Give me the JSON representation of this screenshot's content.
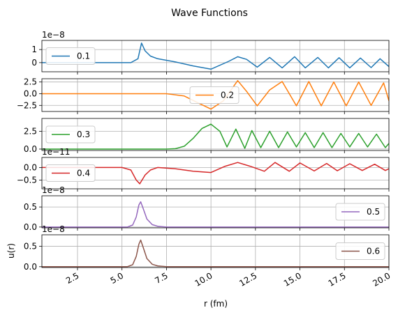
{
  "chart_data": {
    "type": "line",
    "title": "Wave Functions",
    "xlabel": "r (fm)",
    "ylabel": "u(r)",
    "xlim": [
      0.5,
      20
    ],
    "x_ticks": [
      "2.5",
      "5.0",
      "7.5",
      "10.0",
      "12.5",
      "15.0",
      "17.5",
      "20.0"
    ],
    "x_tick_values": [
      2.5,
      5,
      7.5,
      10,
      12.5,
      15,
      17.5,
      20
    ],
    "grid": true,
    "subplots": [
      {
        "name": "0.1",
        "color": "#1f77b4",
        "exponent": "1e−8",
        "legend": "left",
        "ylim": [
          -0.7,
          1.7
        ],
        "y_ticks": [
          {
            "label": "1",
            "value": 1
          },
          {
            "label": "0",
            "value": 0
          }
        ],
        "x": [
          0.5,
          5.5,
          5.9,
          6.1,
          6.3,
          6.6,
          7.0,
          8.0,
          9.0,
          10.0,
          11.0,
          11.5,
          12.0,
          12.6,
          13.3,
          14.0,
          14.7,
          15.3,
          16.0,
          16.6,
          17.2,
          17.8,
          18.4,
          19.0,
          19.5,
          20.0
        ],
        "y": [
          0,
          0,
          0.3,
          1.5,
          0.9,
          0.5,
          0.3,
          0.05,
          -0.25,
          -0.5,
          0.1,
          0.45,
          0.25,
          -0.35,
          0.4,
          -0.4,
          0.45,
          -0.4,
          0.4,
          -0.4,
          0.38,
          -0.4,
          0.35,
          -0.38,
          0.3,
          -0.3
        ]
      },
      {
        "name": "0.2",
        "color": "#ff7f0e",
        "exponent": "",
        "legend": "center",
        "ylim": [
          -3.8,
          3.2
        ],
        "y_ticks": [
          {
            "label": "2.5",
            "value": 2.5
          },
          {
            "label": "0.0",
            "value": 0
          },
          {
            "label": "−2.5",
            "value": -2.5
          }
        ],
        "x": [
          0.5,
          7.5,
          8.5,
          9.3,
          10.0,
          10.7,
          11.5,
          12.0,
          12.6,
          13.3,
          14.0,
          14.8,
          15.5,
          16.2,
          16.9,
          17.6,
          18.3,
          19.0,
          19.7,
          20.0
        ],
        "y": [
          0,
          0,
          -0.5,
          -2.0,
          -3.3,
          -1.5,
          2.8,
          0.5,
          -2.6,
          0.8,
          2.6,
          -2.6,
          2.6,
          -2.6,
          2.5,
          -2.6,
          2.5,
          -2.5,
          2.3,
          -1.5
        ]
      },
      {
        "name": "0.3",
        "color": "#2ca02c",
        "exponent": "",
        "legend": "left",
        "ylim": [
          -0.2,
          4.3
        ],
        "y_ticks": [
          {
            "label": "2.5",
            "value": 2.5
          },
          {
            "label": "0.0",
            "value": 0
          }
        ],
        "x": [
          0.5,
          7.5,
          8.0,
          8.5,
          9.0,
          9.5,
          10.0,
          10.5,
          10.9,
          11.4,
          11.9,
          12.3,
          12.8,
          13.3,
          13.8,
          14.3,
          14.8,
          15.3,
          15.8,
          16.3,
          16.8,
          17.3,
          17.8,
          18.3,
          18.8,
          19.3,
          19.8,
          20.0
        ],
        "y": [
          0,
          0,
          0.05,
          0.4,
          1.5,
          2.9,
          3.5,
          2.5,
          0.3,
          2.8,
          0.1,
          2.6,
          0.2,
          2.5,
          0.2,
          2.4,
          0.3,
          2.3,
          0.2,
          2.3,
          0.2,
          2.2,
          0.3,
          2.2,
          0.3,
          2.1,
          0.2,
          0.8
        ]
      },
      {
        "name": "0.4",
        "color": "#d62728",
        "exponent": "1e−11",
        "legend": "left",
        "ylim": [
          -0.85,
          0.4
        ],
        "y_ticks": [
          {
            "label": "0.0",
            "value": 0
          },
          {
            "label": "−0.5",
            "value": -0.5
          }
        ],
        "x": [
          0.5,
          5.0,
          5.5,
          5.8,
          6.0,
          6.3,
          6.6,
          7.0,
          8.0,
          9.0,
          10.0,
          10.8,
          11.5,
          12.2,
          13.0,
          13.6,
          14.4,
          15.0,
          15.8,
          16.5,
          17.1,
          17.8,
          18.5,
          19.2,
          19.8,
          20.0
        ],
        "y": [
          0,
          0,
          -0.1,
          -0.5,
          -0.65,
          -0.3,
          -0.1,
          0,
          -0.05,
          -0.15,
          -0.2,
          0.05,
          0.2,
          0.05,
          -0.15,
          0.2,
          -0.15,
          0.18,
          -0.14,
          0.16,
          -0.13,
          0.15,
          -0.12,
          0.13,
          -0.12,
          -0.05
        ]
      },
      {
        "name": "0.5",
        "color": "#9467bd",
        "exponent": "1e−8",
        "legend": "right",
        "ylim": [
          -0.02,
          0.78
        ],
        "y_ticks": [
          {
            "label": "0.5",
            "value": 0.5
          },
          {
            "label": "0.0",
            "value": 0
          }
        ],
        "x": [
          0.5,
          5.3,
          5.6,
          5.8,
          5.95,
          6.05,
          6.2,
          6.4,
          6.7,
          7.0,
          7.5,
          20.0
        ],
        "y": [
          0,
          0,
          0.05,
          0.25,
          0.55,
          0.63,
          0.45,
          0.2,
          0.06,
          0.02,
          0,
          0
        ]
      },
      {
        "name": "0.6",
        "color": "#8c564b",
        "exponent": "1e−8",
        "legend": "right",
        "ylim": [
          -0.02,
          0.78
        ],
        "y_ticks": [
          {
            "label": "0.5",
            "value": 0.5
          },
          {
            "label": "0.0",
            "value": 0
          }
        ],
        "x": [
          0.5,
          5.3,
          5.6,
          5.8,
          5.95,
          6.05,
          6.2,
          6.4,
          6.7,
          7.0,
          7.5,
          20.0
        ],
        "y": [
          0,
          0,
          0.05,
          0.25,
          0.55,
          0.65,
          0.46,
          0.2,
          0.06,
          0.02,
          0,
          0
        ]
      }
    ]
  }
}
